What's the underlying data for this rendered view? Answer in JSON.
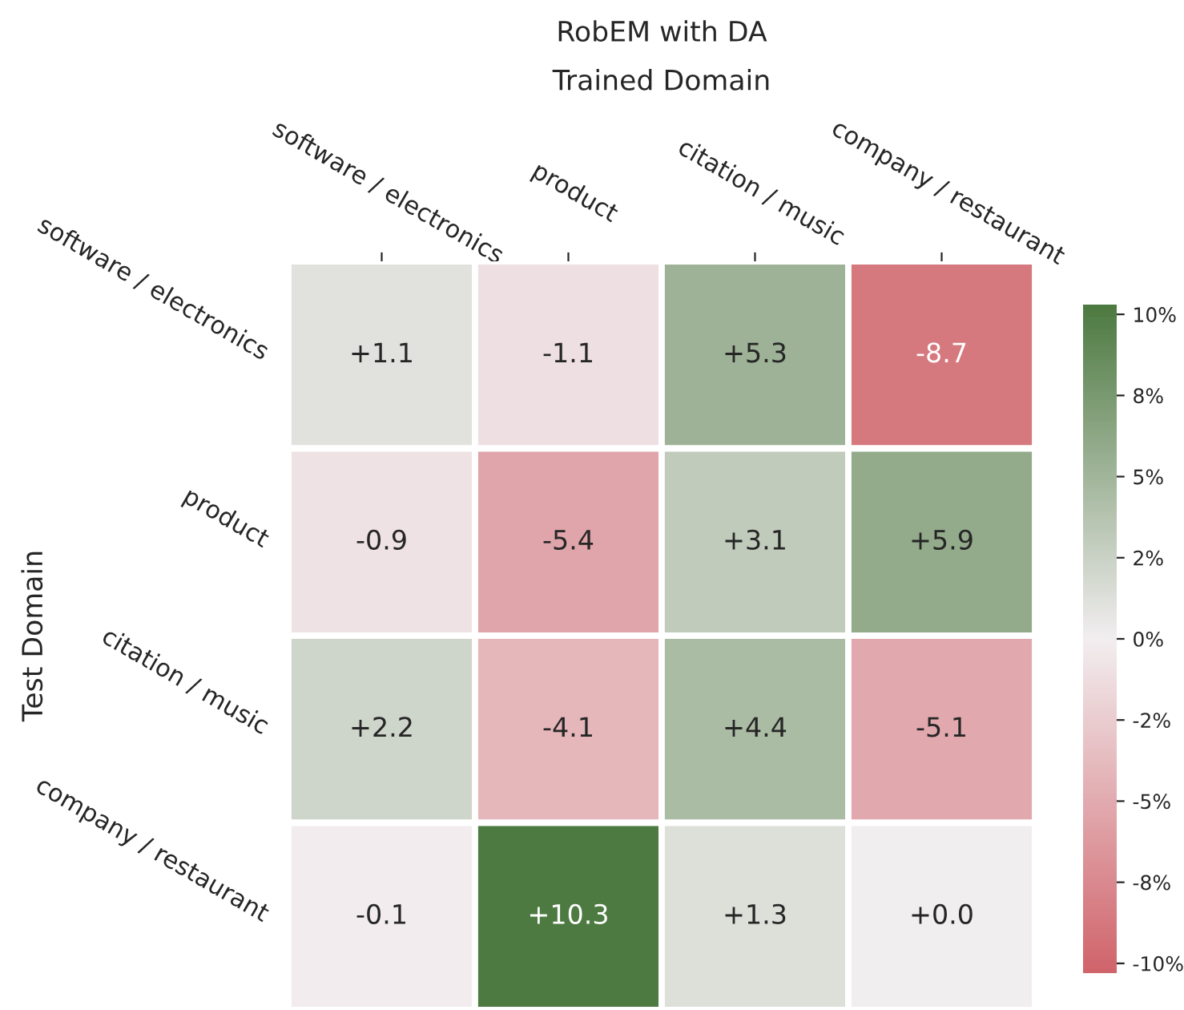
{
  "chart_data": {
    "type": "heatmap",
    "title": "RobEM with DA",
    "xlabel": "Trained Domain",
    "ylabel": "Test Domain",
    "categories": [
      "software / electronics",
      "product",
      "citation / music",
      "company / restaurant"
    ],
    "y_categories": [
      "software / electronics",
      "product",
      "citation / music",
      "company / restaurant"
    ],
    "cells": [
      [
        1.1,
        -1.1,
        5.3,
        -8.7
      ],
      [
        -0.9,
        -5.4,
        3.1,
        5.9
      ],
      [
        2.2,
        -4.1,
        4.4,
        -5.1
      ],
      [
        -0.1,
        10.3,
        1.3,
        0.0
      ]
    ],
    "cell_labels": [
      [
        "+1.1",
        "-1.1",
        "+5.3",
        "-8.7"
      ],
      [
        "-0.9",
        "-5.4",
        "+3.1",
        "+5.9"
      ],
      [
        "+2.2",
        "-4.1",
        "+4.4",
        "-5.1"
      ],
      [
        "-0.1",
        "+10.3",
        "+1.3",
        "+0.0"
      ]
    ],
    "clim": [
      -10.3,
      10.3
    ],
    "cticks": [
      {
        "value": -10,
        "label": "-10%"
      },
      {
        "value": -7.5,
        "label": "-8%"
      },
      {
        "value": -5,
        "label": "-5%"
      },
      {
        "value": -2.5,
        "label": "-2%"
      },
      {
        "value": 0,
        "label": "0%"
      },
      {
        "value": 2.5,
        "label": "2%"
      },
      {
        "value": 5,
        "label": "5%"
      },
      {
        "value": 7.5,
        "label": "8%"
      },
      {
        "value": 10,
        "label": "10%"
      }
    ]
  }
}
